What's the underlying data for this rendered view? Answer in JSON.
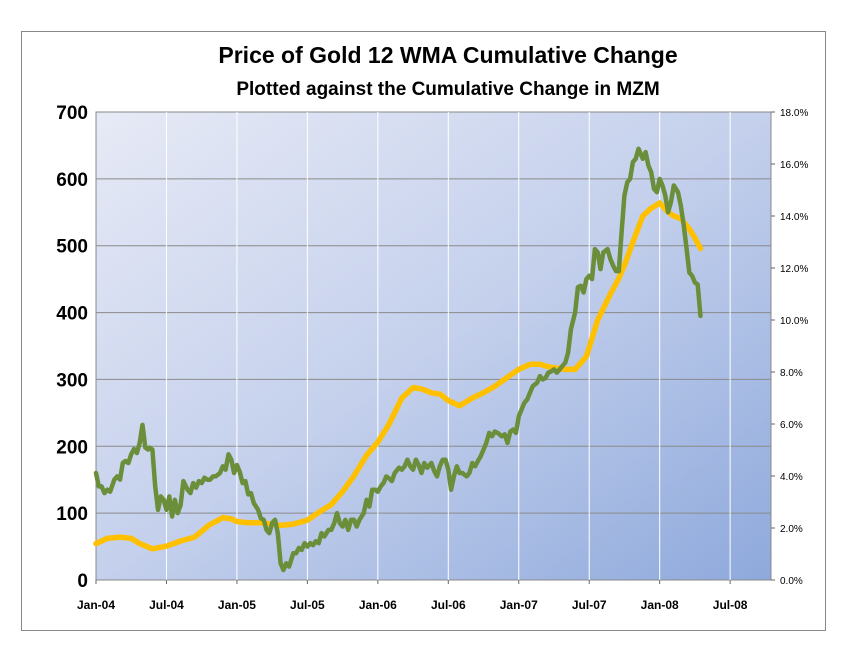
{
  "chart_data": {
    "type": "line",
    "title": "Price of Gold 12 WMA Cumulative Change",
    "subtitle": "Plotted against the Cumulative Change in MZM",
    "xlabel": "",
    "ylabel": "",
    "y_left": {
      "range": [
        0,
        700
      ],
      "ticks": [
        0,
        100,
        200,
        300,
        400,
        500,
        600,
        700
      ]
    },
    "y_right": {
      "range": [
        0.0,
        18.0
      ],
      "ticks": [
        "0.0%",
        "2.0%",
        "4.0%",
        "6.0%",
        "8.0%",
        "10.0%",
        "12.0%",
        "14.0%",
        "16.0%",
        "18.0%"
      ]
    },
    "x_ticks": [
      "Jan-04",
      "Jul-04",
      "Jan-05",
      "Jul-05",
      "Jan-06",
      "Jul-06",
      "Jan-07",
      "Jul-07",
      "Jan-08",
      "Jul-08"
    ],
    "grid": "horizontal",
    "legend": "none",
    "series": [
      {
        "axis": "left",
        "color": "#6b8e3a",
        "values": [
          [
            2004.0,
            160
          ],
          [
            2004.02,
            140
          ],
          [
            2004.04,
            140
          ],
          [
            2004.06,
            130
          ],
          [
            2004.08,
            135
          ],
          [
            2004.1,
            132
          ],
          [
            2004.13,
            150
          ],
          [
            2004.15,
            155
          ],
          [
            2004.17,
            150
          ],
          [
            2004.19,
            175
          ],
          [
            2004.21,
            178
          ],
          [
            2004.23,
            175
          ],
          [
            2004.25,
            188
          ],
          [
            2004.27,
            196
          ],
          [
            2004.29,
            190
          ],
          [
            2004.31,
            205
          ],
          [
            2004.33,
            232
          ],
          [
            2004.35,
            198
          ],
          [
            2004.37,
            195
          ],
          [
            2004.38,
            198
          ],
          [
            2004.4,
            195
          ],
          [
            2004.42,
            140
          ],
          [
            2004.44,
            105
          ],
          [
            2004.46,
            125
          ],
          [
            2004.48,
            120
          ],
          [
            2004.5,
            105
          ],
          [
            2004.52,
            125
          ],
          [
            2004.54,
            95
          ],
          [
            2004.56,
            120
          ],
          [
            2004.58,
            100
          ],
          [
            2004.6,
            112
          ],
          [
            2004.62,
            148
          ],
          [
            2004.65,
            135
          ],
          [
            2004.67,
            130
          ],
          [
            2004.69,
            145
          ],
          [
            2004.71,
            138
          ],
          [
            2004.73,
            148
          ],
          [
            2004.75,
            145
          ],
          [
            2004.77,
            153
          ],
          [
            2004.79,
            150
          ],
          [
            2004.81,
            150
          ],
          [
            2004.83,
            155
          ],
          [
            2004.85,
            155
          ],
          [
            2004.88,
            160
          ],
          [
            2004.9,
            170
          ],
          [
            2004.92,
            165
          ],
          [
            2004.94,
            188
          ],
          [
            2004.96,
            180
          ],
          [
            2004.98,
            160
          ],
          [
            2005.0,
            172
          ],
          [
            2005.02,
            162
          ],
          [
            2005.04,
            145
          ],
          [
            2005.06,
            148
          ],
          [
            2005.08,
            128
          ],
          [
            2005.1,
            130
          ],
          [
            2005.12,
            115
          ],
          [
            2005.15,
            105
          ],
          [
            2005.17,
            92
          ],
          [
            2005.19,
            90
          ],
          [
            2005.21,
            75
          ],
          [
            2005.23,
            70
          ],
          [
            2005.25,
            85
          ],
          [
            2005.27,
            90
          ],
          [
            2005.29,
            70
          ],
          [
            2005.31,
            25
          ],
          [
            2005.33,
            15
          ],
          [
            2005.35,
            25
          ],
          [
            2005.37,
            20
          ],
          [
            2005.4,
            40
          ],
          [
            2005.42,
            40
          ],
          [
            2005.44,
            48
          ],
          [
            2005.46,
            45
          ],
          [
            2005.48,
            55
          ],
          [
            2005.5,
            50
          ],
          [
            2005.52,
            55
          ],
          [
            2005.54,
            52
          ],
          [
            2005.56,
            58
          ],
          [
            2005.58,
            55
          ],
          [
            2005.6,
            70
          ],
          [
            2005.62,
            65
          ],
          [
            2005.65,
            75
          ],
          [
            2005.67,
            75
          ],
          [
            2005.69,
            85
          ],
          [
            2005.71,
            100
          ],
          [
            2005.73,
            85
          ],
          [
            2005.75,
            80
          ],
          [
            2005.77,
            90
          ],
          [
            2005.79,
            75
          ],
          [
            2005.81,
            90
          ],
          [
            2005.83,
            90
          ],
          [
            2005.85,
            80
          ],
          [
            2005.87,
            90
          ],
          [
            2005.9,
            100
          ],
          [
            2005.92,
            120
          ],
          [
            2005.94,
            110
          ],
          [
            2005.96,
            135
          ],
          [
            2005.98,
            135
          ],
          [
            2006.0,
            132
          ],
          [
            2006.02,
            140
          ],
          [
            2006.04,
            145
          ],
          [
            2006.06,
            155
          ],
          [
            2006.08,
            152
          ],
          [
            2006.1,
            148
          ],
          [
            2006.12,
            160
          ],
          [
            2006.15,
            168
          ],
          [
            2006.17,
            165
          ],
          [
            2006.19,
            170
          ],
          [
            2006.21,
            180
          ],
          [
            2006.23,
            170
          ],
          [
            2006.25,
            165
          ],
          [
            2006.27,
            180
          ],
          [
            2006.29,
            172
          ],
          [
            2006.31,
            160
          ],
          [
            2006.33,
            175
          ],
          [
            2006.35,
            168
          ],
          [
            2006.38,
            175
          ],
          [
            2006.4,
            163
          ],
          [
            2006.42,
            155
          ],
          [
            2006.44,
            170
          ],
          [
            2006.46,
            180
          ],
          [
            2006.48,
            180
          ],
          [
            2006.5,
            165
          ],
          [
            2006.52,
            135
          ],
          [
            2006.54,
            155
          ],
          [
            2006.56,
            170
          ],
          [
            2006.58,
            160
          ],
          [
            2006.6,
            160
          ],
          [
            2006.63,
            155
          ],
          [
            2006.65,
            160
          ],
          [
            2006.67,
            175
          ],
          [
            2006.69,
            170
          ],
          [
            2006.71,
            178
          ],
          [
            2006.73,
            185
          ],
          [
            2006.75,
            195
          ],
          [
            2006.77,
            205
          ],
          [
            2006.79,
            220
          ],
          [
            2006.81,
            215
          ],
          [
            2006.83,
            222
          ],
          [
            2006.85,
            220
          ],
          [
            2006.88,
            215
          ],
          [
            2006.9,
            218
          ],
          [
            2006.92,
            205
          ],
          [
            2006.94,
            222
          ],
          [
            2006.96,
            225
          ],
          [
            2006.98,
            220
          ],
          [
            2007.0,
            245
          ],
          [
            2007.02,
            255
          ],
          [
            2007.04,
            265
          ],
          [
            2007.06,
            270
          ],
          [
            2007.08,
            280
          ],
          [
            2007.1,
            290
          ],
          [
            2007.13,
            295
          ],
          [
            2007.15,
            305
          ],
          [
            2007.17,
            300
          ],
          [
            2007.19,
            302
          ],
          [
            2007.21,
            310
          ],
          [
            2007.23,
            312
          ],
          [
            2007.25,
            315
          ],
          [
            2007.27,
            310
          ],
          [
            2007.29,
            315
          ],
          [
            2007.31,
            320
          ],
          [
            2007.33,
            325
          ],
          [
            2007.35,
            340
          ],
          [
            2007.37,
            375
          ],
          [
            2007.4,
            400
          ],
          [
            2007.42,
            438
          ],
          [
            2007.44,
            440
          ],
          [
            2007.46,
            430
          ],
          [
            2007.48,
            450
          ],
          [
            2007.5,
            455
          ],
          [
            2007.52,
            450
          ],
          [
            2007.54,
            495
          ],
          [
            2007.56,
            490
          ],
          [
            2007.58,
            465
          ],
          [
            2007.6,
            490
          ],
          [
            2007.63,
            495
          ],
          [
            2007.65,
            480
          ],
          [
            2007.67,
            470
          ],
          [
            2007.69,
            462
          ],
          [
            2007.71,
            462
          ],
          [
            2007.73,
            520
          ],
          [
            2007.75,
            575
          ],
          [
            2007.77,
            595
          ],
          [
            2007.79,
            600
          ],
          [
            2007.81,
            625
          ],
          [
            2007.83,
            630
          ],
          [
            2007.85,
            645
          ],
          [
            2007.88,
            630
          ],
          [
            2007.9,
            640
          ],
          [
            2007.92,
            620
          ],
          [
            2007.94,
            610
          ],
          [
            2007.96,
            585
          ],
          [
            2007.98,
            580
          ],
          [
            2008.0,
            600
          ],
          [
            2008.02,
            590
          ],
          [
            2008.04,
            575
          ],
          [
            2008.06,
            550
          ],
          [
            2008.08,
            565
          ],
          [
            2008.1,
            590
          ],
          [
            2008.13,
            580
          ],
          [
            2008.15,
            560
          ],
          [
            2008.17,
            532
          ],
          [
            2008.19,
            498
          ],
          [
            2008.21,
            460
          ],
          [
            2008.23,
            455
          ],
          [
            2008.25,
            445
          ],
          [
            2008.27,
            442
          ],
          [
            2008.29,
            395
          ]
        ]
      },
      {
        "axis": "right",
        "color": "#ffc000",
        "values": [
          [
            2004.0,
            1.4
          ],
          [
            2004.08,
            1.6
          ],
          [
            2004.17,
            1.65
          ],
          [
            2004.25,
            1.6
          ],
          [
            2004.31,
            1.4
          ],
          [
            2004.4,
            1.2
          ],
          [
            2004.5,
            1.3
          ],
          [
            2004.6,
            1.5
          ],
          [
            2004.7,
            1.65
          ],
          [
            2004.8,
            2.1
          ],
          [
            2004.9,
            2.4
          ],
          [
            2004.96,
            2.35
          ],
          [
            2005.0,
            2.25
          ],
          [
            2005.08,
            2.2
          ],
          [
            2005.17,
            2.2
          ],
          [
            2005.25,
            2.15
          ],
          [
            2005.31,
            2.1
          ],
          [
            2005.4,
            2.15
          ],
          [
            2005.5,
            2.3
          ],
          [
            2005.58,
            2.6
          ],
          [
            2005.67,
            2.9
          ],
          [
            2005.75,
            3.4
          ],
          [
            2005.83,
            4.0
          ],
          [
            2005.92,
            4.8
          ],
          [
            2006.0,
            5.3
          ],
          [
            2006.08,
            6.0
          ],
          [
            2006.17,
            7.0
          ],
          [
            2006.25,
            7.4
          ],
          [
            2006.31,
            7.35
          ],
          [
            2006.38,
            7.2
          ],
          [
            2006.44,
            7.15
          ],
          [
            2006.5,
            6.9
          ],
          [
            2006.58,
            6.7
          ],
          [
            2006.67,
            7.0
          ],
          [
            2006.75,
            7.2
          ],
          [
            2006.83,
            7.45
          ],
          [
            2006.92,
            7.8
          ],
          [
            2007.0,
            8.1
          ],
          [
            2007.08,
            8.3
          ],
          [
            2007.15,
            8.3
          ],
          [
            2007.21,
            8.2
          ],
          [
            2007.27,
            8.15
          ],
          [
            2007.33,
            8.1
          ],
          [
            2007.4,
            8.1
          ],
          [
            2007.48,
            8.6
          ],
          [
            2007.56,
            10.0
          ],
          [
            2007.65,
            11.0
          ],
          [
            2007.71,
            11.6
          ],
          [
            2007.75,
            12.1
          ],
          [
            2007.81,
            13.0
          ],
          [
            2007.88,
            14.0
          ],
          [
            2007.94,
            14.3
          ],
          [
            2008.0,
            14.5
          ],
          [
            2008.06,
            14.15
          ],
          [
            2008.1,
            14.0
          ],
          [
            2008.15,
            13.9
          ],
          [
            2008.21,
            13.5
          ],
          [
            2008.25,
            13.15
          ],
          [
            2008.29,
            12.75
          ]
        ]
      }
    ]
  }
}
